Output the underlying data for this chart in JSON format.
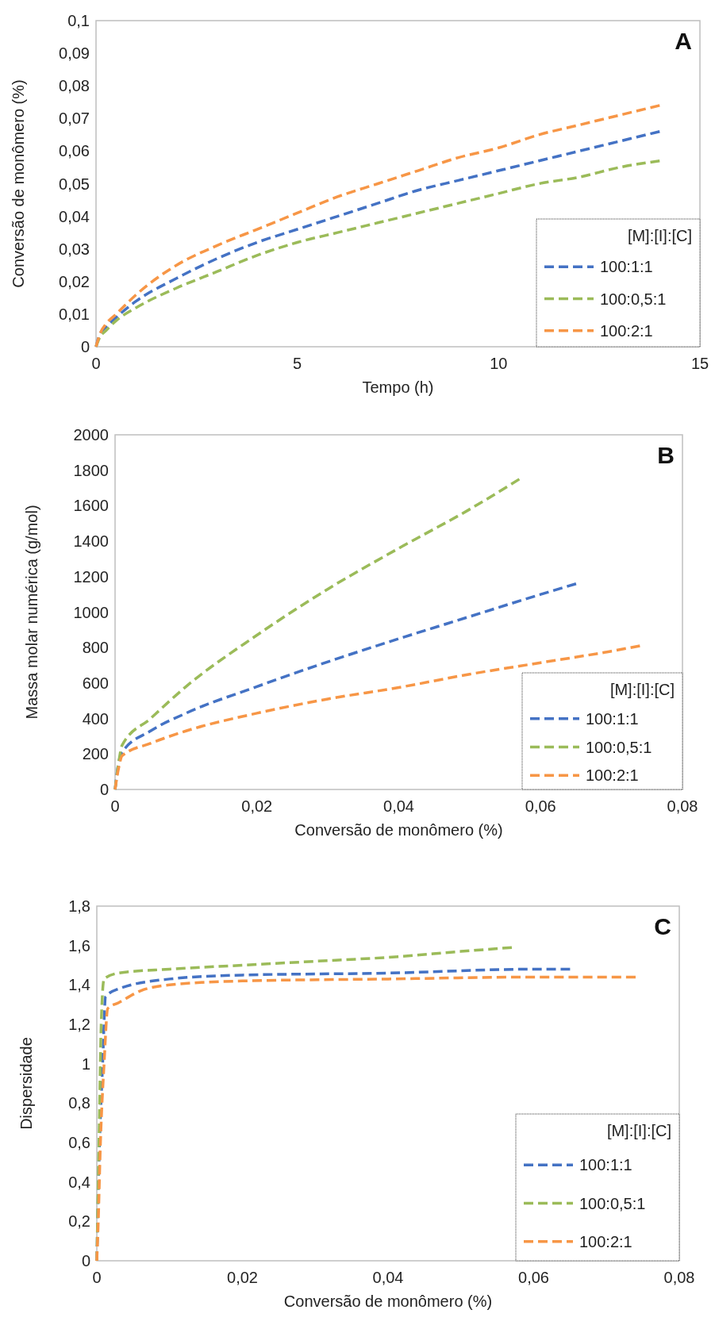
{
  "chart_data": [
    {
      "type": "line",
      "xlabel": "Tempo (h)",
      "ylabel": "Conversão de monômero (%)",
      "legend_title": "[M]:[I]:[C]",
      "annotations": [
        "A"
      ],
      "xlim": [
        0,
        15
      ],
      "xticks": [
        0,
        5,
        10,
        15
      ],
      "ylim": [
        0,
        0.1
      ],
      "yticks": [
        0,
        {
          "value": 0.01,
          "label": "0,01"
        },
        {
          "value": 0.02,
          "label": "0,02"
        },
        {
          "value": 0.03,
          "label": "0,03"
        },
        {
          "value": 0.04,
          "label": "0,04"
        },
        {
          "value": 0.05,
          "label": "0,05"
        },
        {
          "value": 0.06,
          "label": "0,06"
        },
        {
          "value": 0.07,
          "label": "0,07"
        },
        {
          "value": 0.08,
          "label": "0,08"
        },
        {
          "value": 0.09,
          "label": "0,09"
        },
        {
          "value": 0.1,
          "label": "0,1"
        }
      ],
      "grid": false,
      "legend": "bottom right",
      "marker": "none",
      "line_style": "dashed",
      "x": [
        0,
        0.1,
        0.25,
        0.5,
        1,
        2,
        3,
        4,
        5,
        6,
        7,
        8,
        9,
        10,
        11,
        12,
        13,
        14
      ],
      "series": [
        {
          "name": "100:1:1",
          "color": "#4472c4",
          "values": [
            0,
            0.004,
            0.006,
            0.009,
            0.014,
            0.021,
            0.027,
            0.032,
            0.036,
            0.04,
            0.044,
            0.048,
            0.051,
            0.054,
            0.057,
            0.06,
            0.063,
            0.066
          ]
        },
        {
          "name": "100:0,5:1",
          "color": "#9bbb59",
          "values": [
            0,
            0.003,
            0.005,
            0.008,
            0.012,
            0.018,
            0.023,
            0.028,
            0.032,
            0.035,
            0.038,
            0.041,
            0.044,
            0.047,
            0.05,
            0.052,
            0.055,
            0.057
          ]
        },
        {
          "name": "100:2:1",
          "color": "#f79646",
          "values": [
            0,
            0.004,
            0.007,
            0.01,
            0.016,
            0.025,
            0.031,
            0.036,
            0.041,
            0.046,
            0.05,
            0.054,
            0.058,
            0.061,
            0.065,
            0.068,
            0.071,
            0.074
          ]
        }
      ]
    },
    {
      "type": "line",
      "xlabel": "Conversão de monômero (%)",
      "ylabel": "Massa molar numérica (g/mol)",
      "legend_title": "[M]:[I]:[C]",
      "annotations": [
        "B"
      ],
      "xlim": [
        0,
        0.08
      ],
      "xticks": [
        0,
        {
          "value": 0.02,
          "label": "0,02"
        },
        {
          "value": 0.04,
          "label": "0,04"
        },
        {
          "value": 0.06,
          "label": "0,06"
        },
        {
          "value": 0.08,
          "label": "0,08"
        }
      ],
      "ylim": [
        0,
        2000
      ],
      "yticks": [
        0,
        200,
        400,
        600,
        800,
        1000,
        1200,
        1400,
        1600,
        1800,
        2000
      ],
      "grid": false,
      "legend": "bottom right",
      "marker": "none",
      "line_style": "dashed",
      "series": [
        {
          "name": "100:1:1",
          "color": "#4472c4",
          "x": [
            0,
            0.0005,
            0.001,
            0.005,
            0.01,
            0.02,
            0.03,
            0.04,
            0.05,
            0.06,
            0.065
          ],
          "values": [
            0,
            150,
            210,
            330,
            430,
            580,
            720,
            850,
            975,
            1100,
            1160
          ]
        },
        {
          "name": "100:0,5:1",
          "color": "#9bbb59",
          "x": [
            0,
            0.0005,
            0.001,
            0.005,
            0.01,
            0.02,
            0.03,
            0.04,
            0.05,
            0.057
          ],
          "values": [
            0,
            150,
            250,
            400,
            580,
            870,
            1130,
            1360,
            1580,
            1750
          ]
        },
        {
          "name": "100:2:1",
          "color": "#f79646",
          "x": [
            0,
            0.0005,
            0.001,
            0.005,
            0.01,
            0.02,
            0.03,
            0.04,
            0.05,
            0.06,
            0.07,
            0.074
          ],
          "values": [
            0,
            120,
            190,
            260,
            330,
            430,
            510,
            575,
            650,
            715,
            780,
            810
          ]
        }
      ]
    },
    {
      "type": "line",
      "xlabel": "Conversão de monômero (%)",
      "ylabel": "Dispersidade",
      "legend_title": "[M]:[I]:[C]",
      "annotations": [
        "C"
      ],
      "xlim": [
        0,
        0.08
      ],
      "xticks": [
        0,
        {
          "value": 0.02,
          "label": "0,02"
        },
        {
          "value": 0.04,
          "label": "0,04"
        },
        {
          "value": 0.06,
          "label": "0,06"
        },
        {
          "value": 0.08,
          "label": "0,08"
        }
      ],
      "ylim": [
        0,
        1.8
      ],
      "yticks": [
        0,
        {
          "value": 0.2,
          "label": "0,2"
        },
        {
          "value": 0.4,
          "label": "0,4"
        },
        {
          "value": 0.6,
          "label": "0,6"
        },
        {
          "value": 0.8,
          "label": "0,8"
        },
        1,
        {
          "value": 1.2,
          "label": "1,2"
        },
        {
          "value": 1.4,
          "label": "1,4"
        },
        {
          "value": 1.6,
          "label": "1,6"
        },
        {
          "value": 1.8,
          "label": "1,8"
        }
      ],
      "grid": false,
      "legend": "bottom right",
      "marker": "none",
      "line_style": "dashed",
      "series": [
        {
          "name": "100:1:1",
          "color": "#4472c4",
          "x": [
            0,
            0.0003,
            0.0008,
            0.0012,
            0.003,
            0.01,
            0.02,
            0.04,
            0.06,
            0.065
          ],
          "values": [
            0,
            0.5,
            1.0,
            1.34,
            1.38,
            1.43,
            1.45,
            1.46,
            1.48,
            1.48
          ]
        },
        {
          "name": "100:0,5:1",
          "color": "#9bbb59",
          "x": [
            0,
            0.0003,
            0.0006,
            0.001,
            0.003,
            0.01,
            0.02,
            0.03,
            0.04,
            0.05,
            0.057
          ],
          "values": [
            0,
            0.6,
            1.2,
            1.43,
            1.46,
            1.48,
            1.5,
            1.52,
            1.54,
            1.57,
            1.59
          ]
        },
        {
          "name": "100:2:1",
          "color": "#f79646",
          "x": [
            0,
            0.0002,
            0.0005,
            0.001,
            0.0015,
            0.003,
            0.006,
            0.01,
            0.02,
            0.04,
            0.06,
            0.074
          ],
          "values": [
            0,
            0.2,
            0.6,
            1.0,
            1.28,
            1.31,
            1.37,
            1.4,
            1.42,
            1.43,
            1.44,
            1.44
          ]
        }
      ]
    }
  ]
}
